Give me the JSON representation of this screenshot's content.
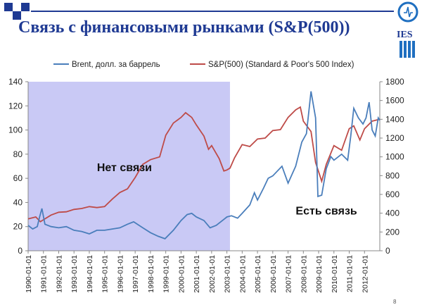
{
  "slide": {
    "title": "Связь с финансовыми рынками (S&P(500))",
    "logo_text": "IES",
    "page_number": "8"
  },
  "colors": {
    "brent": "#4a7ebb",
    "sp500": "#be4b48",
    "shade": "#c9c9f5",
    "title": "#1f3a93"
  },
  "chart_data": {
    "type": "line",
    "title": "",
    "legend": {
      "placement": "top",
      "entries": [
        "Brent, долл. за баррель",
        "S&P(500) (Standard & Poor's 500 Index)"
      ]
    },
    "x_ticks": [
      "1990-01-01",
      "1991-01-01",
      "1992-01-01",
      "1993-01-01",
      "1994-01-01",
      "1995-01-01",
      "1996-01-01",
      "1997-01-01",
      "1998-01-01",
      "1999-01-01",
      "2000-01-01",
      "2001-01-01",
      "2002-01-01",
      "2003-01-01",
      "2004-01-01",
      "2005-01-01",
      "2006-01-01",
      "2007-01-01",
      "2008-01-01",
      "2009-01-01",
      "2010-01-01",
      "2011-01-01",
      "2012-01-01"
    ],
    "x_range": [
      1990.0,
      2013.0
    ],
    "y_left": {
      "range": [
        0,
        140
      ],
      "ticks": [
        "0",
        "20",
        "40",
        "60",
        "80",
        "100",
        "120",
        "140"
      ]
    },
    "y_right": {
      "range": [
        0,
        1800
      ],
      "ticks": [
        "0",
        "200",
        "400",
        "600",
        "800",
        "1000",
        "1200",
        "1400",
        "1600",
        "1800"
      ]
    },
    "grid": false,
    "shaded_region": {
      "x_start": 1990.0,
      "x_end": 2003.2,
      "label": "Нет связи"
    },
    "annotations": [
      {
        "text": "Нет связи",
        "x": 1994.5,
        "y": 66,
        "axis": "left"
      },
      {
        "text": "Есть связь",
        "x": 2007.5,
        "y": 30,
        "axis": "left"
      }
    ],
    "series": [
      {
        "name": "Brent, долл. за баррель",
        "axis": "left",
        "x": [
          1990.0,
          1990.3,
          1990.6,
          1990.75,
          1990.9,
          1991.1,
          1991.5,
          1992.0,
          1992.5,
          1993.0,
          1993.5,
          1994.0,
          1994.5,
          1995.0,
          1995.5,
          1996.0,
          1996.5,
          1996.9,
          1997.5,
          1998.0,
          1998.5,
          1998.95,
          1999.5,
          2000.0,
          2000.4,
          2000.7,
          2001.0,
          2001.5,
          2001.9,
          2002.3,
          2002.8,
          2003.0,
          2003.3,
          2003.7,
          2004.0,
          2004.5,
          2004.8,
          2005.0,
          2005.4,
          2005.7,
          2006.0,
          2006.6,
          2007.0,
          2007.5,
          2007.9,
          2008.2,
          2008.5,
          2008.8,
          2008.95,
          2009.2,
          2009.5,
          2009.8,
          2010.0,
          2010.5,
          2010.9,
          2011.1,
          2011.3,
          2011.6,
          2011.9,
          2012.1,
          2012.3,
          2012.5,
          2012.7,
          2012.9,
          2013.0
        ],
        "values": [
          21,
          18,
          20,
          28,
          35,
          22,
          20,
          19,
          20,
          17,
          16,
          14,
          17,
          17,
          18,
          19,
          22,
          24,
          19,
          15,
          12,
          10,
          17,
          25,
          30,
          31,
          28,
          25,
          19,
          21,
          26,
          28,
          29,
          27,
          31,
          38,
          48,
          42,
          52,
          60,
          62,
          70,
          56,
          70,
          90,
          97,
          132,
          110,
          45,
          46,
          68,
          78,
          75,
          80,
          75,
          95,
          118,
          110,
          105,
          110,
          123,
          100,
          95,
          110,
          108
        ]
      },
      {
        "name": "S&P(500) (Standard & Poor's 500 Index)",
        "axis": "right",
        "x": [
          1990.0,
          1990.5,
          1990.8,
          1991.0,
          1991.5,
          1992.0,
          1992.5,
          1993.0,
          1993.5,
          1994.0,
          1994.5,
          1995.0,
          1995.5,
          1996.0,
          1996.5,
          1997.0,
          1997.5,
          1998.0,
          1998.6,
          1999.0,
          1999.5,
          2000.0,
          2000.3,
          2000.7,
          2001.0,
          2001.5,
          2001.8,
          2002.0,
          2002.5,
          2002.8,
          2003.0,
          2003.2,
          2003.5,
          2004.0,
          2004.5,
          2005.0,
          2005.5,
          2006.0,
          2006.5,
          2007.0,
          2007.5,
          2007.8,
          2008.0,
          2008.5,
          2008.8,
          2009.2,
          2009.5,
          2010.0,
          2010.5,
          2011.0,
          2011.3,
          2011.7,
          2012.0,
          2012.5,
          2013.0
        ],
        "values": [
          340,
          360,
          310,
          330,
          380,
          410,
          415,
          440,
          450,
          470,
          460,
          470,
          550,
          620,
          660,
          780,
          920,
          970,
          1000,
          1230,
          1360,
          1420,
          1470,
          1420,
          1340,
          1220,
          1080,
          1120,
          980,
          850,
          860,
          880,
          990,
          1130,
          1110,
          1190,
          1200,
          1280,
          1290,
          1420,
          1500,
          1530,
          1380,
          1270,
          940,
          740,
          920,
          1120,
          1070,
          1300,
          1330,
          1180,
          1300,
          1380,
          1400
        ]
      }
    ]
  }
}
